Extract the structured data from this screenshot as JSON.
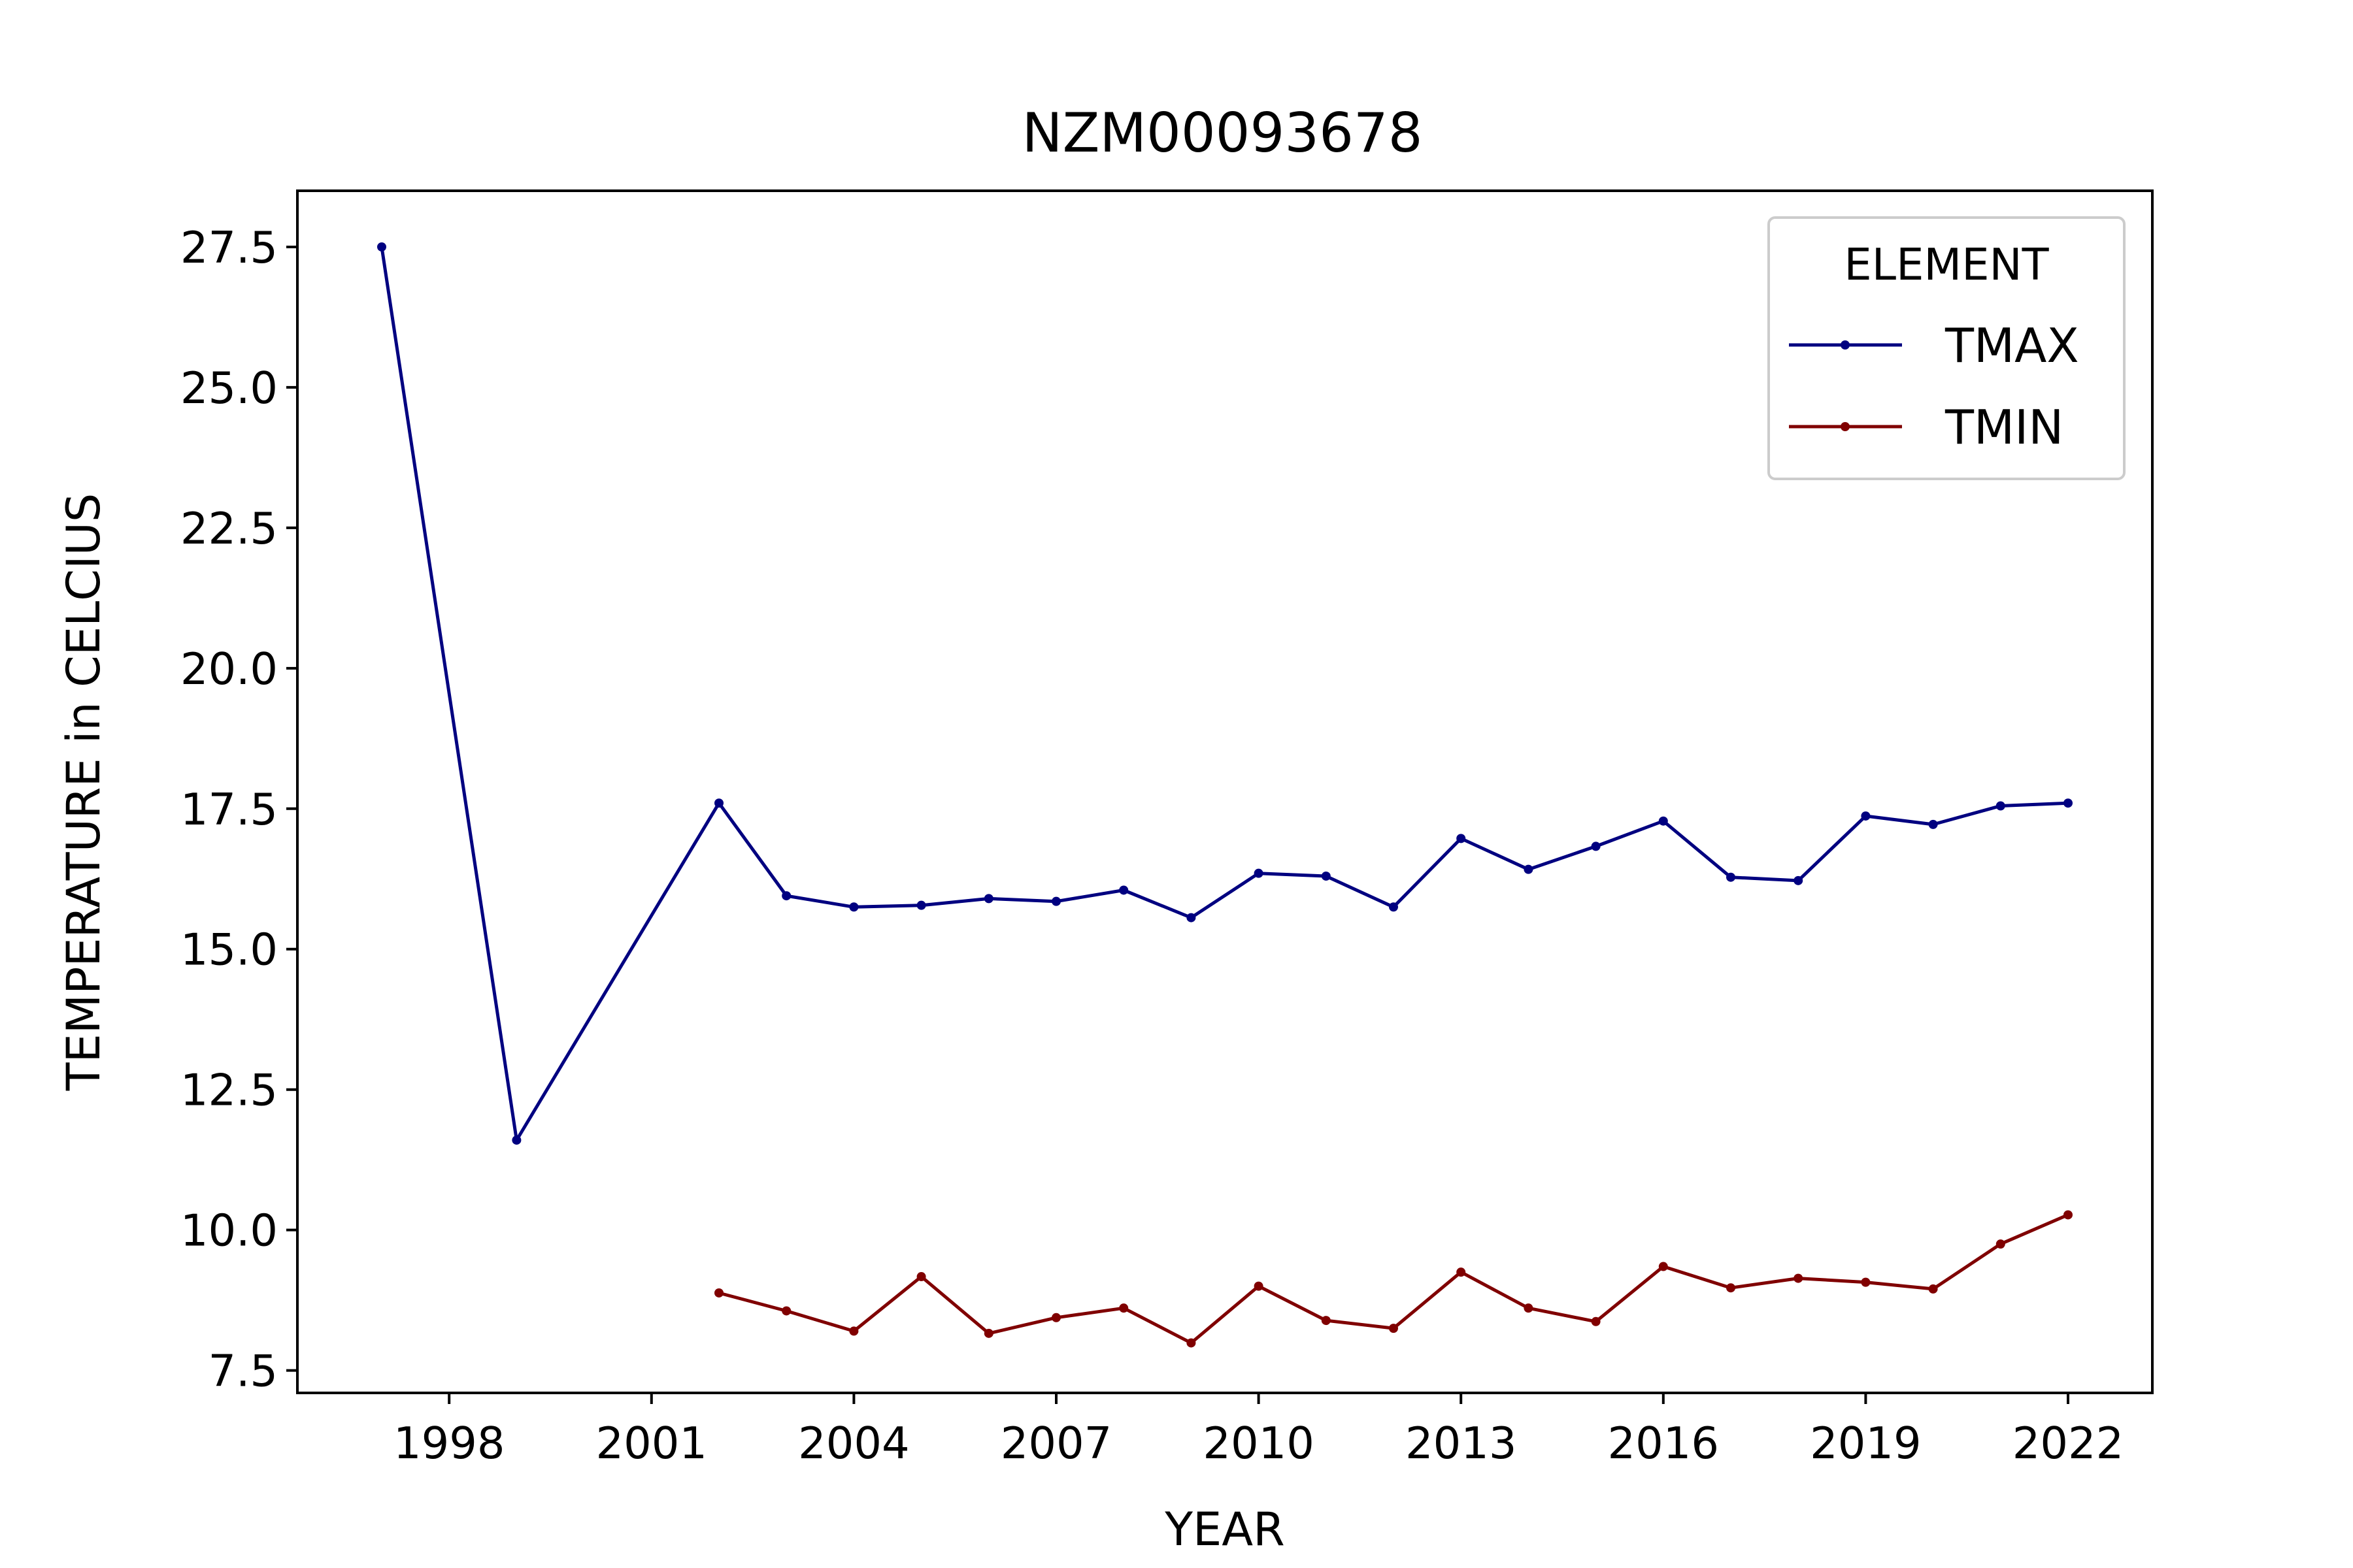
{
  "chart_data": {
    "type": "line",
    "title": "NZM00093678",
    "xlabel": "YEAR",
    "ylabel": "TEMPERATURE in CELCIUS",
    "xlim": [
      1995.75,
      2023.25
    ],
    "ylim": [
      7.1,
      28.5
    ],
    "xticks": [
      1998,
      2001,
      2004,
      2007,
      2010,
      2013,
      2016,
      2019,
      2022
    ],
    "yticks": [
      7.5,
      10.0,
      12.5,
      15.0,
      17.5,
      20.0,
      22.5,
      25.0,
      27.5
    ],
    "xtick_labels": [
      "1998",
      "2001",
      "2004",
      "2007",
      "2010",
      "2013",
      "2016",
      "2019",
      "2022"
    ],
    "ytick_labels": [
      "7.5",
      "10.0",
      "12.5",
      "15.0",
      "17.5",
      "20.0",
      "22.5",
      "25.0",
      "27.5"
    ],
    "grid": false,
    "legend": {
      "title": "ELEMENT",
      "position": "top-right"
    },
    "series": [
      {
        "name": "TMAX",
        "color": "#000080",
        "x": [
          1997,
          1999,
          2002,
          2003,
          2004,
          2005,
          2006,
          2007,
          2008,
          2009,
          2010,
          2011,
          2012,
          2013,
          2014,
          2015,
          2016,
          2017,
          2018,
          2019,
          2020,
          2021,
          2022
        ],
        "y": [
          27.5,
          11.6,
          17.6,
          15.95,
          15.75,
          15.78,
          15.9,
          15.85,
          16.05,
          15.56,
          16.35,
          16.3,
          15.75,
          16.97,
          16.42,
          16.83,
          17.28,
          16.28,
          16.22,
          17.37,
          17.22,
          17.55,
          17.6
        ]
      },
      {
        "name": "TMIN",
        "color": "#800000",
        "x": [
          2002,
          2003,
          2004,
          2005,
          2006,
          2007,
          2008,
          2009,
          2010,
          2011,
          2012,
          2013,
          2014,
          2015,
          2016,
          2017,
          2018,
          2019,
          2020,
          2021,
          2022
        ],
        "y": [
          8.88,
          8.56,
          8.2,
          9.17,
          8.16,
          8.44,
          8.61,
          7.99,
          9.0,
          8.39,
          8.25,
          9.25,
          8.61,
          8.37,
          9.35,
          8.97,
          9.14,
          9.07,
          8.95,
          9.75,
          10.27
        ]
      }
    ]
  }
}
